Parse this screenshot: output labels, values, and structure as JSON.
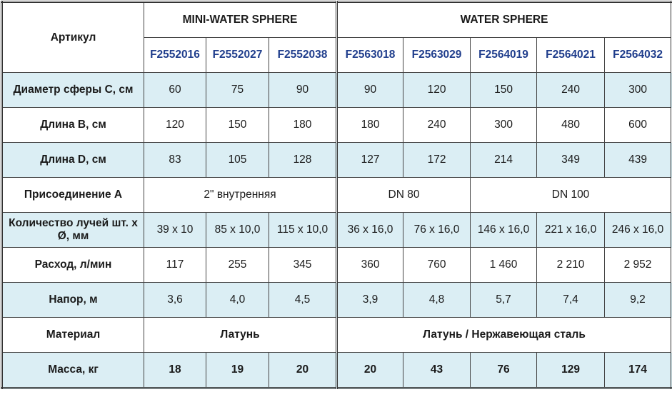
{
  "header": {
    "article_label": "Артикул",
    "groups": [
      {
        "label": "MINI-WATER SPHERE",
        "span": 3
      },
      {
        "label": "WATER SPHERE",
        "span": 5
      }
    ],
    "codes": [
      "F2552016",
      "F2552027",
      "F2552038",
      "F2563018",
      "F2563029",
      "F2564019",
      "F2564021",
      "F2564032"
    ]
  },
  "rows": [
    {
      "label": "Диаметр сферы С, см",
      "shade": "blue",
      "cells": [
        {
          "v": "60"
        },
        {
          "v": "75"
        },
        {
          "v": "90"
        },
        {
          "v": "90"
        },
        {
          "v": "120"
        },
        {
          "v": "150"
        },
        {
          "v": "240"
        },
        {
          "v": "300"
        }
      ]
    },
    {
      "label": "Длина B, см",
      "shade": "white",
      "cells": [
        {
          "v": "120"
        },
        {
          "v": "150"
        },
        {
          "v": "180"
        },
        {
          "v": "180"
        },
        {
          "v": "240"
        },
        {
          "v": "300"
        },
        {
          "v": "480"
        },
        {
          "v": "600"
        }
      ]
    },
    {
      "label": "Длина D, см",
      "shade": "blue",
      "cells": [
        {
          "v": "83"
        },
        {
          "v": "105"
        },
        {
          "v": "128"
        },
        {
          "v": "127"
        },
        {
          "v": "172"
        },
        {
          "v": "214"
        },
        {
          "v": "349"
        },
        {
          "v": "439"
        }
      ]
    },
    {
      "label": "Присоединение А",
      "shade": "white",
      "cells": [
        {
          "v": "2\" внутренняя",
          "span": 3
        },
        {
          "v": "DN 80",
          "span": 2
        },
        {
          "v": "DN 100",
          "span": 3
        }
      ]
    },
    {
      "label": "Количество лучей шт. х Ø, мм",
      "shade": "blue",
      "cells": [
        {
          "v": "39 x 10"
        },
        {
          "v": "85 x 10,0"
        },
        {
          "v": "115 x 10,0"
        },
        {
          "v": "36 x 16,0"
        },
        {
          "v": "76 x 16,0"
        },
        {
          "v": "146 x 16,0"
        },
        {
          "v": "221 x 16,0"
        },
        {
          "v": "246 x 16,0"
        }
      ]
    },
    {
      "label": "Расход, л/мин",
      "shade": "white",
      "cells": [
        {
          "v": "117"
        },
        {
          "v": "255"
        },
        {
          "v": "345"
        },
        {
          "v": "360"
        },
        {
          "v": "760"
        },
        {
          "v": "1 460"
        },
        {
          "v": "2 210"
        },
        {
          "v": "2 952"
        }
      ]
    },
    {
      "label": "Напор, м",
      "shade": "blue",
      "cells": [
        {
          "v": "3,6"
        },
        {
          "v": "4,0"
        },
        {
          "v": "4,5"
        },
        {
          "v": "3,9"
        },
        {
          "v": "4,8"
        },
        {
          "v": "5,7"
        },
        {
          "v": "7,4"
        },
        {
          "v": "9,2"
        }
      ]
    },
    {
      "label": "Материал",
      "shade": "white",
      "bold": true,
      "cells": [
        {
          "v": "Латунь",
          "span": 3
        },
        {
          "v": "Латунь / Нержавеющая сталь",
          "span": 5
        }
      ]
    },
    {
      "label": "Масса, кг",
      "shade": "blue",
      "bold": true,
      "cells": [
        {
          "v": "18"
        },
        {
          "v": "19"
        },
        {
          "v": "20"
        },
        {
          "v": "20"
        },
        {
          "v": "43"
        },
        {
          "v": "76"
        },
        {
          "v": "129"
        },
        {
          "v": "174"
        }
      ]
    }
  ]
}
